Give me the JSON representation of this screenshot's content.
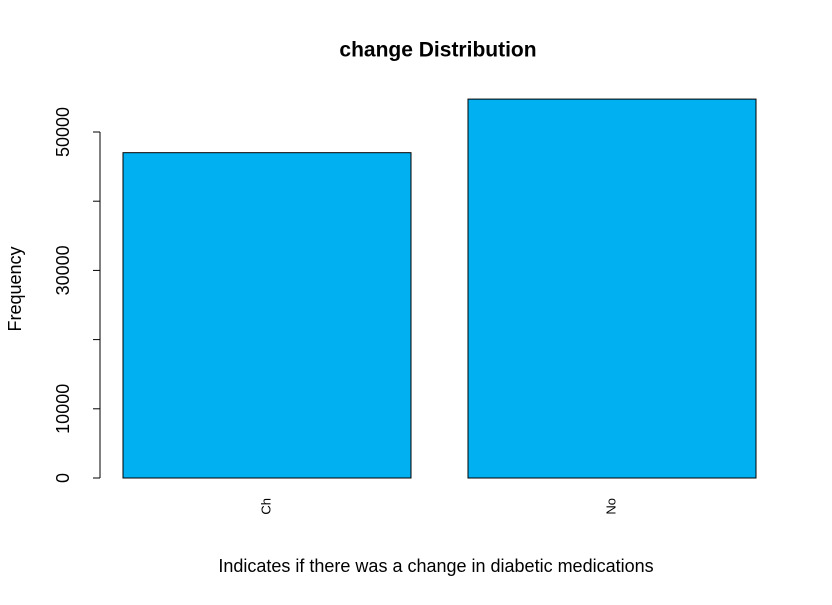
{
  "chart_data": {
    "type": "bar",
    "title": "change Distribution",
    "x_label": "Indicates if there was a change in diabetic medications",
    "y_label": "Frequency",
    "categories": [
      "Ch",
      "No"
    ],
    "values": [
      47011,
      54755
    ],
    "color": "#00b0f0",
    "ylim": [
      0,
      57000
    ],
    "yticks": [
      0,
      10000,
      30000,
      50000
    ],
    "yminor_ticks": [
      20000,
      40000
    ],
    "grid": false
  }
}
